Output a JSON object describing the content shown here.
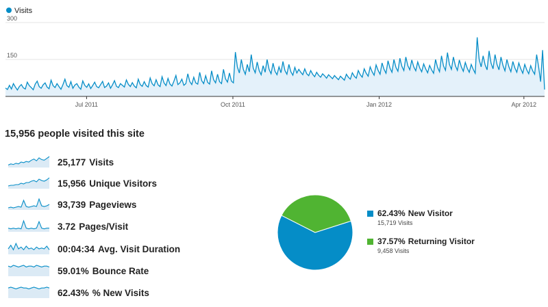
{
  "chart_data": {
    "type": "area",
    "series": [
      {
        "name": "Visits",
        "color": "#058dc7"
      }
    ],
    "x_tick_labels": [
      "Jul 2011",
      "Oct 2011",
      "Jan 2012",
      "Apr 2012"
    ],
    "x_tick_dates": [
      "2011-07-01",
      "2011-10-01",
      "2012-01-01",
      "2012-04-01"
    ],
    "x_range": [
      "2011-05-11",
      "2012-04-14"
    ],
    "y_tick_labels": [
      "300",
      "150"
    ],
    "ylim": [
      0,
      300
    ],
    "grid": true,
    "legend": "top-left",
    "values": [
      34,
      28,
      45,
      30,
      52,
      38,
      26,
      40,
      48,
      35,
      30,
      58,
      44,
      36,
      27,
      50,
      62,
      40,
      33,
      47,
      55,
      38,
      31,
      66,
      44,
      36,
      52,
      40,
      29,
      48,
      70,
      44,
      37,
      60,
      33,
      46,
      52,
      38,
      29,
      63,
      45,
      37,
      51,
      32,
      44,
      58,
      40,
      35,
      48,
      61,
      36,
      42,
      55,
      33,
      47,
      64,
      41,
      36,
      52,
      45,
      38,
      67,
      49,
      40,
      56,
      42,
      35,
      70,
      48,
      41,
      60,
      44,
      38,
      75,
      52,
      43,
      68,
      47,
      40,
      80,
      55,
      44,
      73,
      50,
      42,
      62,
      85,
      48,
      55,
      70,
      45,
      52,
      92,
      60,
      48,
      78,
      55,
      50,
      98,
      64,
      52,
      84,
      57,
      50,
      104,
      68,
      55,
      90,
      60,
      52,
      110,
      72,
      58,
      95,
      62,
      55,
      180,
      120,
      95,
      150,
      110,
      90,
      130,
      100,
      170,
      115,
      96,
      140,
      105,
      88,
      125,
      98,
      150,
      110,
      92,
      135,
      102,
      88,
      120,
      96,
      142,
      105,
      90,
      130,
      100,
      86,
      118,
      95,
      110,
      98,
      88,
      112,
      92,
      84,
      105,
      90,
      80,
      98,
      86,
      78,
      92,
      84,
      74,
      88,
      80,
      72,
      85,
      76,
      68,
      82,
      74,
      66,
      90,
      78,
      70,
      96,
      82,
      74,
      105,
      88,
      78,
      112,
      94,
      82,
      120,
      100,
      86,
      128,
      106,
      90,
      136,
      110,
      94,
      145,
      115,
      98,
      150,
      118,
      102,
      155,
      122,
      105,
      160,
      125,
      108,
      148,
      120,
      104,
      140,
      116,
      100,
      132,
      112,
      96,
      126,
      108,
      94,
      150,
      118,
      100,
      165,
      124,
      106,
      178,
      130,
      110,
      160,
      125,
      106,
      148,
      120,
      102,
      138,
      114,
      98,
      130,
      110,
      94,
      240,
      150,
      120,
      165,
      128,
      108,
      185,
      135,
      112,
      170,
      130,
      108,
      160,
      126,
      104,
      150,
      120,
      100,
      142,
      116,
      98,
      136,
      112,
      94,
      130,
      108,
      92,
      125,
      104,
      90,
      170,
      120,
      60,
      188,
      28
    ],
    "unit": "visits"
  },
  "summary": {
    "headline": "15,956 people visited this site"
  },
  "metrics": [
    {
      "value": "25,177",
      "label": "Visits",
      "trend": [
        4,
        6,
        5,
        7,
        6,
        9,
        8,
        10,
        9,
        12,
        14,
        11,
        16,
        13,
        12,
        15,
        18
      ]
    },
    {
      "value": "15,956",
      "label": "Unique Visitors",
      "trend": [
        4,
        5,
        5,
        6,
        6,
        8,
        7,
        9,
        9,
        11,
        12,
        10,
        14,
        12,
        11,
        13,
        16
      ]
    },
    {
      "value": "93,739",
      "label": "Pageviews",
      "trend": [
        3,
        4,
        3,
        4,
        5,
        4,
        14,
        5,
        4,
        5,
        6,
        5,
        16,
        6,
        5,
        6,
        8
      ]
    },
    {
      "value": "3.72",
      "label": "Pages/Visit",
      "trend": [
        5,
        4,
        5,
        4,
        5,
        4,
        15,
        5,
        4,
        5,
        4,
        5,
        14,
        5,
        4,
        5,
        5
      ]
    },
    {
      "value": "00:04:34",
      "label": "Avg. Visit Duration",
      "trend": [
        6,
        10,
        5,
        12,
        6,
        8,
        5,
        9,
        6,
        7,
        5,
        8,
        6,
        7,
        6,
        9,
        5
      ]
    },
    {
      "value": "59.01%",
      "label": "Bounce Rate",
      "trend": [
        12,
        11,
        13,
        12,
        11,
        12,
        13,
        11,
        12,
        12,
        11,
        13,
        12,
        11,
        12,
        12,
        11
      ]
    },
    {
      "value": "62.43%",
      "label": "% New Visits",
      "trend": [
        12,
        13,
        12,
        11,
        12,
        13,
        12,
        12,
        11,
        12,
        13,
        12,
        11,
        12,
        12,
        13,
        12
      ]
    }
  ],
  "pie": {
    "slices": [
      {
        "label": "New Visitor",
        "percent": "62.43%",
        "value": 62.43,
        "detail": "15,719 Visits",
        "color": "#058dc7"
      },
      {
        "label": "Returning Visitor",
        "percent": "37.57%",
        "value": 37.57,
        "detail": "9,458 Visits",
        "color": "#50b432"
      }
    ]
  }
}
